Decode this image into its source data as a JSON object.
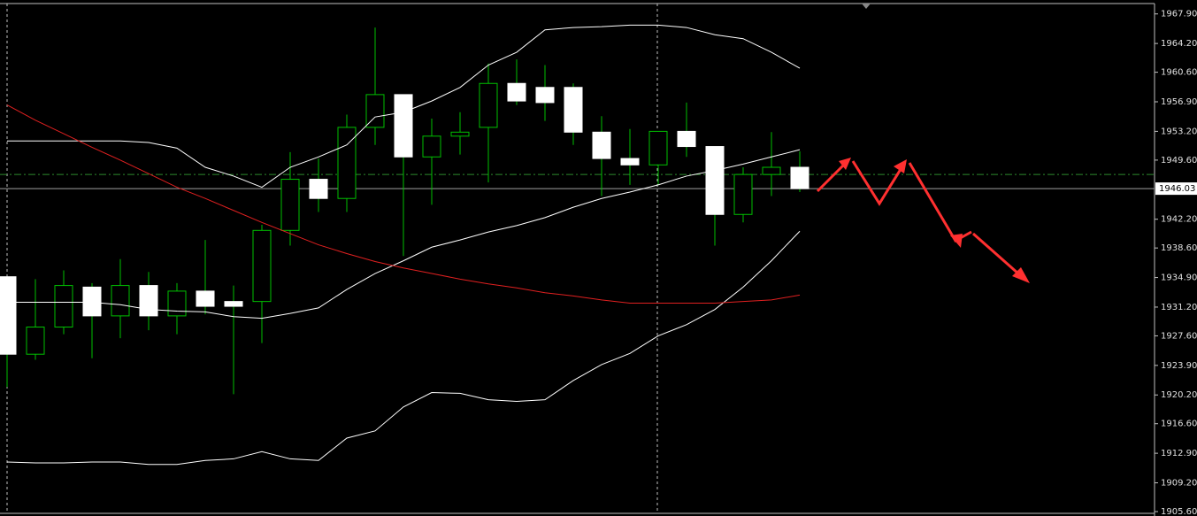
{
  "chart_data": {
    "type": "candlestick",
    "ylim": [
      1905.6,
      1969.2
    ],
    "yticks": [
      {
        "value": 1967.9,
        "label": "1967.90"
      },
      {
        "value": 1964.2,
        "label": "1964.20"
      },
      {
        "value": 1960.6,
        "label": "1960.60"
      },
      {
        "value": 1956.9,
        "label": "1956.90"
      },
      {
        "value": 1953.2,
        "label": "1953.20"
      },
      {
        "value": 1949.6,
        "label": "1949.60"
      },
      {
        "value": 1942.2,
        "label": "1942.20"
      },
      {
        "value": 1938.6,
        "label": "1938.60"
      },
      {
        "value": 1934.9,
        "label": "1934.90"
      },
      {
        "value": 1931.2,
        "label": "1931.20"
      },
      {
        "value": 1927.6,
        "label": "1927.60"
      },
      {
        "value": 1923.9,
        "label": "1923.90"
      },
      {
        "value": 1920.2,
        "label": "1920.20"
      },
      {
        "value": 1916.6,
        "label": "1916.60"
      },
      {
        "value": 1912.9,
        "label": "1912.90"
      },
      {
        "value": 1909.2,
        "label": "1909.20"
      },
      {
        "value": 1905.6,
        "label": "1905.60"
      }
    ],
    "current_price": 1946.03,
    "level": 1947.8,
    "up_color": "#00c000",
    "down_color": "#ffffff",
    "open": [
      1935.0,
      1925.3,
      1928.7,
      1933.7,
      1930.1,
      1933.9,
      1930.1,
      1933.2,
      1931.9,
      1931.9,
      1940.8,
      1947.2,
      1944.8,
      1953.7,
      1957.8,
      1950.0,
      1952.6,
      1953.7,
      1959.2,
      1958.7,
      1958.7,
      1953.1,
      1949.8,
      1949.0,
      1953.2,
      1951.3,
      1942.8,
      1947.8,
      1948.7
    ],
    "high": [
      1935.0,
      1934.7,
      1935.8,
      1934.2,
      1937.2,
      1935.6,
      1934.2,
      1939.6,
      1933.9,
      1941.5,
      1950.6,
      1949.8,
      1955.3,
      1966.2,
      1957.8,
      1954.8,
      1955.6,
      1961.7,
      1962.2,
      1961.5,
      1959.2,
      1955.1,
      1953.5,
      1953.2,
      1956.8,
      1951.3,
      1948.7,
      1953.1,
      1950.7
    ],
    "low": [
      1921.2,
      1924.6,
      1927.8,
      1924.8,
      1927.3,
      1928.3,
      1927.8,
      1930.3,
      1920.3,
      1926.7,
      1938.9,
      1943.1,
      1943.1,
      1951.5,
      1937.6,
      1944.0,
      1950.3,
      1946.8,
      1956.5,
      1954.5,
      1951.5,
      1945.1,
      1946.5,
      1946.5,
      1950.0,
      1938.9,
      1941.8,
      1945.1,
      1945.6
    ],
    "close": [
      1925.3,
      1928.7,
      1933.9,
      1930.1,
      1933.9,
      1930.1,
      1933.2,
      1931.3,
      1931.3,
      1940.8,
      1947.2,
      1944.8,
      1953.7,
      1957.8,
      1950.0,
      1952.6,
      1953.1,
      1959.2,
      1957.0,
      1956.8,
      1953.1,
      1949.8,
      1949.0,
      1953.2,
      1951.3,
      1942.8,
      1947.8,
      1948.7,
      1946.03
    ],
    "lines": [
      {
        "color": "#ffffff",
        "values": [
          1952.0,
          1952.0,
          1952.0,
          1952.0,
          1952.0,
          1951.8,
          1951.1,
          1948.7,
          1947.6,
          1946.2,
          1948.7,
          1950.0,
          1951.5,
          1955.0,
          1955.6,
          1957.0,
          1958.7,
          1961.5,
          1963.1,
          1965.9,
          1966.2,
          1966.3,
          1966.5,
          1966.5,
          1966.2,
          1965.3,
          1964.8,
          1963.1,
          1961.1
        ]
      },
      {
        "color": "#ffffff",
        "values": [
          1931.8,
          1931.8,
          1931.8,
          1931.8,
          1931.5,
          1930.9,
          1930.7,
          1930.6,
          1930.0,
          1929.8,
          1930.4,
          1931.1,
          1933.4,
          1935.4,
          1937.0,
          1938.7,
          1939.6,
          1940.6,
          1941.4,
          1942.4,
          1943.7,
          1944.8,
          1945.6,
          1946.5,
          1947.6,
          1948.3,
          1949.1,
          1950.0,
          1950.9
        ]
      },
      {
        "color": "#ffffff",
        "values": [
          1911.8,
          1911.7,
          1911.7,
          1911.8,
          1911.8,
          1911.5,
          1911.5,
          1912.0,
          1912.2,
          1913.1,
          1912.2,
          1912.0,
          1914.8,
          1915.7,
          1918.7,
          1920.5,
          1920.4,
          1919.6,
          1919.4,
          1919.6,
          1922.0,
          1924.0,
          1925.4,
          1927.6,
          1929.0,
          1930.9,
          1933.7,
          1937.0,
          1940.7
        ]
      },
      {
        "color": "#e02020",
        "values": [
          1956.5,
          1954.6,
          1952.9,
          1951.2,
          1949.6,
          1947.9,
          1946.2,
          1944.8,
          1943.3,
          1941.8,
          1940.4,
          1939.0,
          1937.9,
          1936.9,
          1936.1,
          1935.4,
          1934.7,
          1934.1,
          1933.6,
          1933.0,
          1932.6,
          1932.1,
          1931.7,
          1931.7,
          1931.7,
          1931.7,
          1931.9,
          1932.1,
          1932.7
        ]
      }
    ]
  }
}
